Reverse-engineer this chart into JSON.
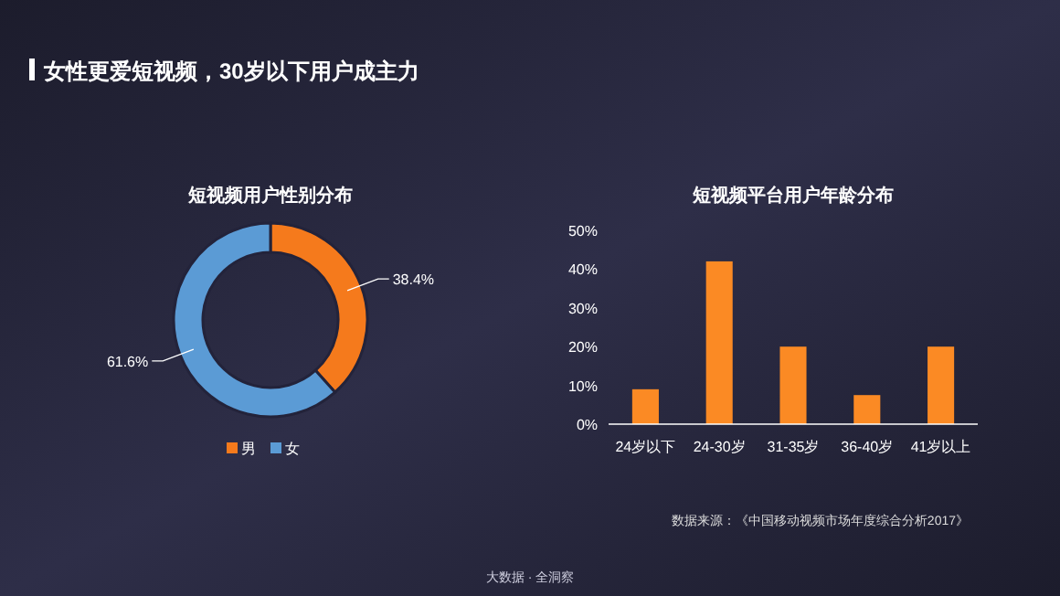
{
  "chart_data": [
    {
      "type": "donut",
      "title": "短视频用户性别分布",
      "categories": [
        "男",
        "女"
      ],
      "values": [
        38.4,
        61.6
      ],
      "colors": [
        "#f57a1c",
        "#5b9bd5"
      ],
      "value_labels": [
        "38.4%",
        "61.6%"
      ],
      "legend": "bottom",
      "annotations": [
        "女性更爱短视频，30岁以下用户成主力",
        "大数据 · 全洞察"
      ]
    },
    {
      "type": "bar",
      "title": "短视频平台用户年龄分布",
      "categories": [
        "24岁以下",
        "24-30岁",
        "31-35岁",
        "36-40岁",
        "41岁以上"
      ],
      "values": [
        9,
        42,
        20,
        7.5,
        20
      ],
      "color": "#fb8a24",
      "ylim": [
        0,
        50
      ],
      "yticks": [
        {
          "value": 0,
          "label": "0%"
        },
        {
          "value": 10,
          "label": "10%"
        },
        {
          "value": 20,
          "label": "20%"
        },
        {
          "value": 30,
          "label": "30%"
        },
        {
          "value": 40,
          "label": "40%"
        },
        {
          "value": 50,
          "label": "50%"
        }
      ],
      "grid": false,
      "annotations": [
        "数据来源：《中国移动视频市场年度综合分析2017》"
      ]
    }
  ]
}
